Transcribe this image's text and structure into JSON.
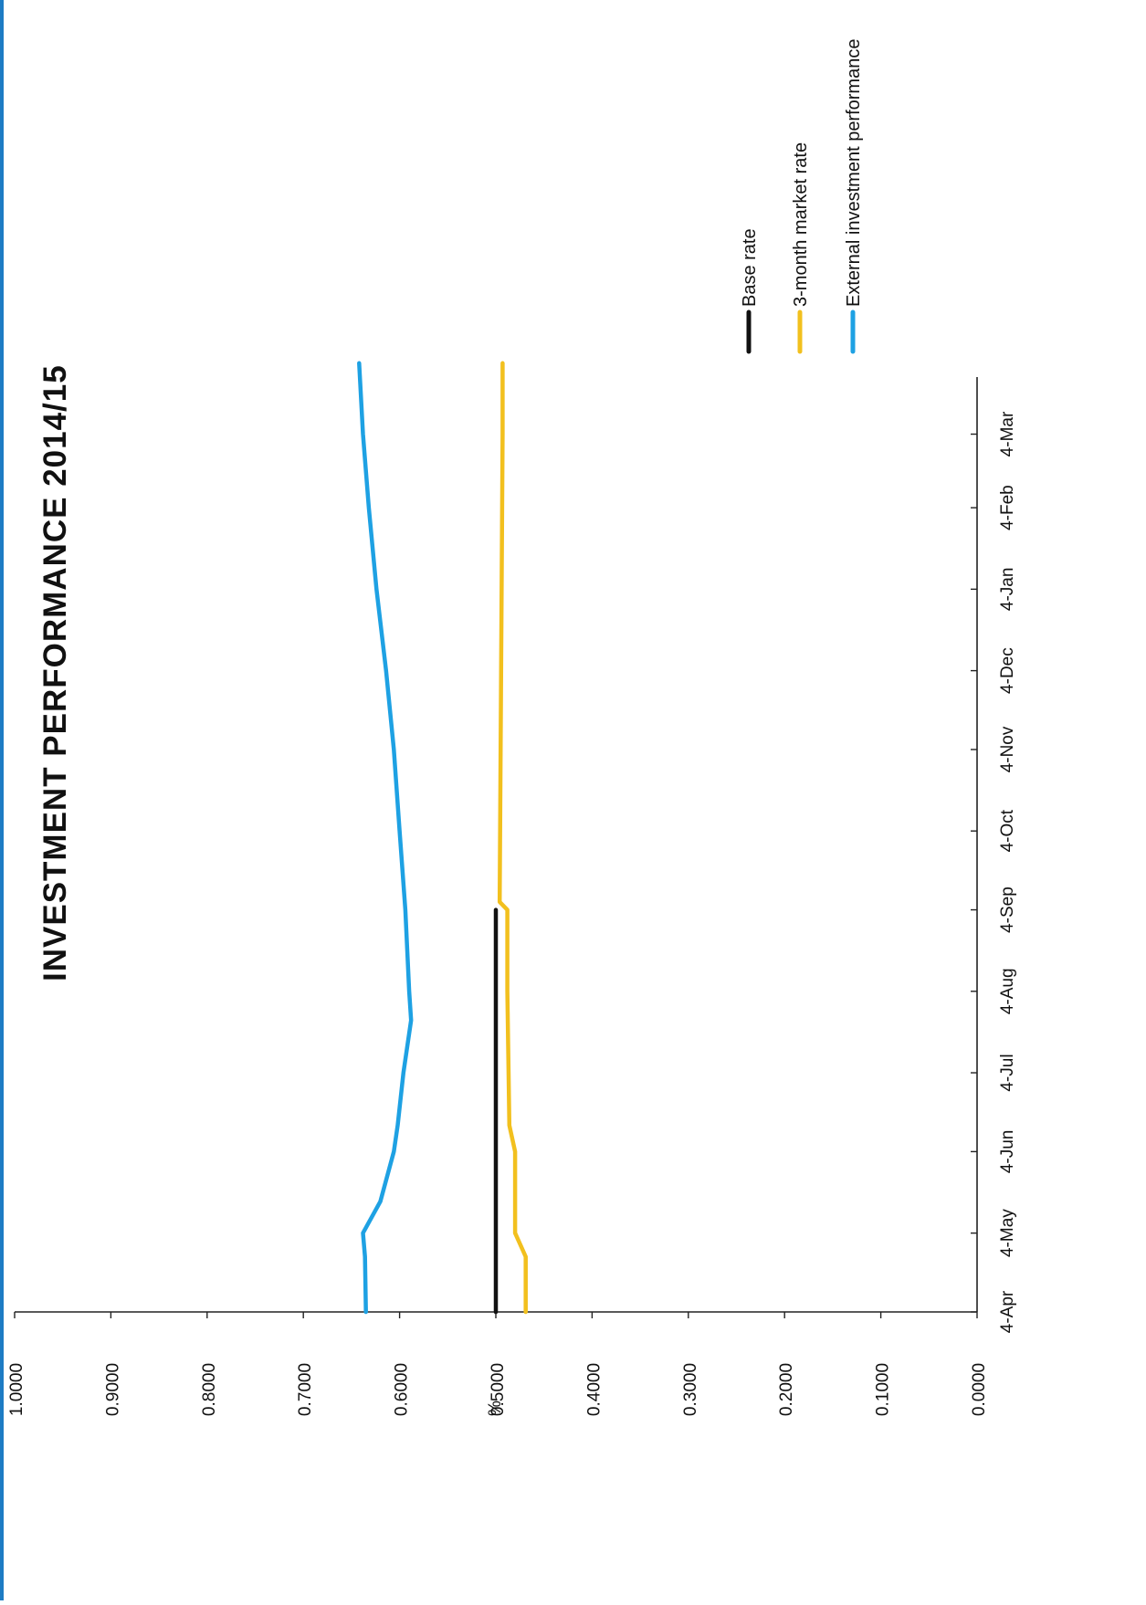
{
  "colors": {
    "page_edge": "#1e7cc4",
    "axis": "#222222",
    "base_rate": "#111111",
    "market_rate": "#f2c01e",
    "external": "#1ea1e3"
  },
  "chart_data": {
    "type": "line",
    "title": "INVESTMENT PERFORMANCE 2014/15",
    "ylabel": "%",
    "xlabel": "",
    "orientation": "rotated-90-clockwise",
    "x_ticks": [
      "4-Apr",
      "4-May",
      "4-Jun",
      "4-Jul",
      "4-Aug",
      "4-Sep",
      "4-Oct",
      "4-Nov",
      "4-Dec",
      "4-Jan",
      "4-Feb",
      "4-Mar"
    ],
    "xlim": [
      "4-Apr",
      "4-Apr"
    ],
    "ylim": [
      0,
      1
    ],
    "y_ticks": [
      "0.0000",
      "0.1000",
      "0.2000",
      "0.3000",
      "0.4000",
      "0.5000",
      "0.6000",
      "0.7000",
      "0.8000",
      "0.9000",
      "1.0000"
    ],
    "grid": false,
    "legend_position": "right",
    "series": [
      {
        "name": "Base rate",
        "color": "#111111",
        "points": [
          [
            "4-Apr",
            0.5
          ],
          [
            "4-Sep",
            0.5
          ]
        ]
      },
      {
        "name": "3-month market rate",
        "color": "#f2c01e",
        "points": [
          [
            "4-Apr",
            0.469
          ],
          [
            "25-Apr",
            0.469
          ],
          [
            "4-May",
            0.48
          ],
          [
            "4-Jun",
            0.48
          ],
          [
            "14-Jun",
            0.486
          ],
          [
            "4-Aug",
            0.488
          ],
          [
            "4-Sep",
            0.488
          ],
          [
            "7-Sep",
            0.496
          ],
          [
            "4-Mar",
            0.493
          ],
          [
            "31-Mar",
            0.493
          ]
        ]
      },
      {
        "name": "External investment performance",
        "color": "#1ea1e3",
        "points": [
          [
            "4-Apr",
            0.635
          ],
          [
            "25-Apr",
            0.636
          ],
          [
            "4-May",
            0.638
          ],
          [
            "16-May",
            0.62
          ],
          [
            "4-Jun",
            0.606
          ],
          [
            "14-Jun",
            0.602
          ],
          [
            "4-Jul",
            0.596
          ],
          [
            "24-Jul",
            0.588
          ],
          [
            "4-Aug",
            0.59
          ],
          [
            "4-Sep",
            0.594
          ],
          [
            "4-Oct",
            0.6
          ],
          [
            "4-Nov",
            0.606
          ],
          [
            "4-Dec",
            0.614
          ],
          [
            "4-Jan",
            0.624
          ],
          [
            "4-Feb",
            0.632
          ],
          [
            "4-Mar",
            0.638
          ],
          [
            "31-Mar",
            0.642
          ]
        ]
      }
    ]
  }
}
